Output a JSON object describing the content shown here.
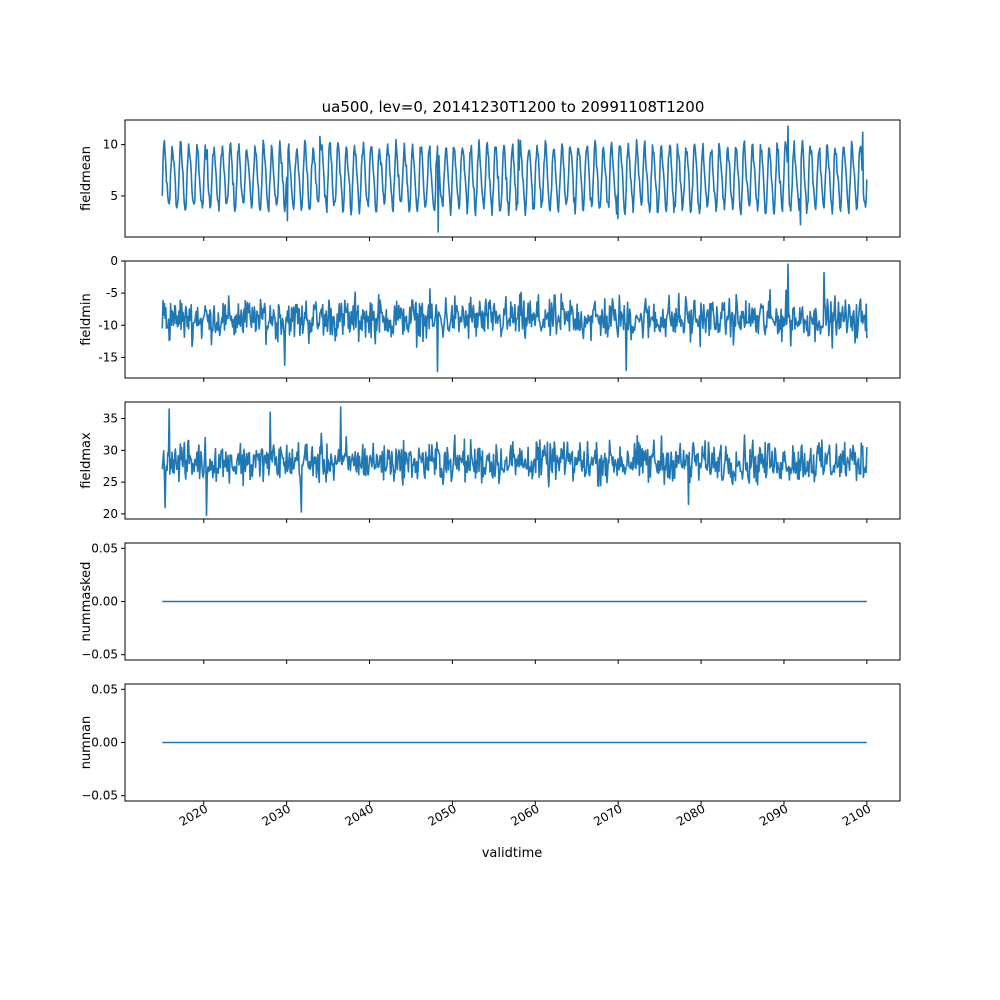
{
  "figure": {
    "title": "ua500, lev=0, 20141230T1200 to 20991108T1200",
    "xlabel": "validtime",
    "line_color": "#1f77b4"
  },
  "chart_data": [
    {
      "type": "line",
      "ylabel": "fieldmean",
      "xlim": [
        2010.5,
        2104.0
      ],
      "ylim": [
        1.0,
        12.4
      ],
      "yticks": [
        5,
        10
      ],
      "xticks": [
        2020,
        2030,
        2040,
        2050,
        2060,
        2070,
        2080,
        2090,
        2100
      ],
      "xtick_labels_visible": false,
      "series": [
        {
          "x_start": 2015.0,
          "x_end": 2100.0,
          "description": "Strong seasonal cycle, about 11 oscillations per decade visible, oscillating between roughly 3 and 10.5",
          "summary": {
            "mean": 6.8,
            "min": 1.5,
            "max": 11.8,
            "min_x": 2048.3,
            "max_x": 2090.5
          },
          "extremes": [
            [
              2015.0,
              5.0
            ],
            [
              2020.4,
              9.5
            ],
            [
              2030.1,
              2.6
            ],
            [
              2034.0,
              10.8
            ],
            [
              2048.3,
              1.5
            ],
            [
              2058.0,
              10.5
            ],
            [
              2070.0,
              2.8
            ],
            [
              2090.5,
              11.8
            ],
            [
              2092.0,
              2.2
            ],
            [
              2099.5,
              11.2
            ],
            [
              2100.0,
              6.6
            ]
          ]
        }
      ]
    },
    {
      "type": "line",
      "ylabel": "fieldmin",
      "xlim": [
        2010.5,
        2104.0
      ],
      "ylim": [
        -18.2,
        0.0
      ],
      "yticks": [
        -15,
        -10,
        -5,
        0
      ],
      "xticks": [
        2020,
        2030,
        2040,
        2050,
        2060,
        2070,
        2080,
        2090,
        2100
      ],
      "xtick_labels_visible": false,
      "series": [
        {
          "x_start": 2015.0,
          "x_end": 2100.0,
          "description": "Noisy series centered near -9, ranging about -16 to -3",
          "summary": {
            "mean": -9.0,
            "min": -17.2,
            "max": -0.5,
            "min_x": 2048.2,
            "max_x": 2090.5
          },
          "extremes": [
            [
              2015.0,
              -10.5
            ],
            [
              2029.8,
              -16.2
            ],
            [
              2048.2,
              -17.2
            ],
            [
              2071.0,
              -17.0
            ],
            [
              2090.5,
              -0.5
            ],
            [
              2094.8,
              -1.8
            ],
            [
              2100.0,
              -12.0
            ]
          ]
        }
      ]
    },
    {
      "type": "line",
      "ylabel": "fieldmax",
      "xlim": [
        2010.5,
        2104.0
      ],
      "ylim": [
        19.2,
        37.6
      ],
      "yticks": [
        20,
        25,
        30,
        35
      ],
      "xticks": [
        2020,
        2030,
        2040,
        2050,
        2060,
        2070,
        2080,
        2090,
        2100
      ],
      "xtick_labels_visible": false,
      "series": [
        {
          "x_start": 2015.0,
          "x_end": 2100.0,
          "description": "Noisy series centered near 28, ranging about 24 to 33",
          "summary": {
            "mean": 28.2,
            "min": 19.8,
            "max": 36.8,
            "min_x": 2020.3,
            "max_x": 2036.5
          },
          "extremes": [
            [
              2015.3,
              21.0
            ],
            [
              2015.8,
              36.5
            ],
            [
              2020.3,
              19.8
            ],
            [
              2028.0,
              36.0
            ],
            [
              2031.8,
              20.3
            ],
            [
              2036.5,
              36.8
            ],
            [
              2078.5,
              21.5
            ],
            [
              2100.0,
              30.5
            ]
          ]
        }
      ]
    },
    {
      "type": "line",
      "ylabel": "nummasked",
      "xlim": [
        2010.5,
        2104.0
      ],
      "ylim": [
        -0.055,
        0.055
      ],
      "yticks": [
        -0.05,
        0.0,
        0.05
      ],
      "ytick_labels": [
        "−0.05",
        "0.00",
        "0.05"
      ],
      "xticks": [
        2020,
        2030,
        2040,
        2050,
        2060,
        2070,
        2080,
        2090,
        2100
      ],
      "xtick_labels_visible": false,
      "series": [
        {
          "x": [
            2015.0,
            2100.0
          ],
          "y": [
            0.0,
            0.0
          ]
        }
      ]
    },
    {
      "type": "line",
      "ylabel": "numnan",
      "xlim": [
        2010.5,
        2104.0
      ],
      "ylim": [
        -0.055,
        0.055
      ],
      "yticks": [
        -0.05,
        0.0,
        0.05
      ],
      "ytick_labels": [
        "−0.05",
        "0.00",
        "0.05"
      ],
      "xticks": [
        2020,
        2030,
        2040,
        2050,
        2060,
        2070,
        2080,
        2090,
        2100
      ],
      "xtick_labels": [
        "2020",
        "2030",
        "2040",
        "2050",
        "2060",
        "2070",
        "2080",
        "2090",
        "2100"
      ],
      "xtick_labels_visible": true,
      "series": [
        {
          "x": [
            2015.0,
            2100.0
          ],
          "y": [
            0.0,
            0.0
          ]
        }
      ]
    }
  ]
}
